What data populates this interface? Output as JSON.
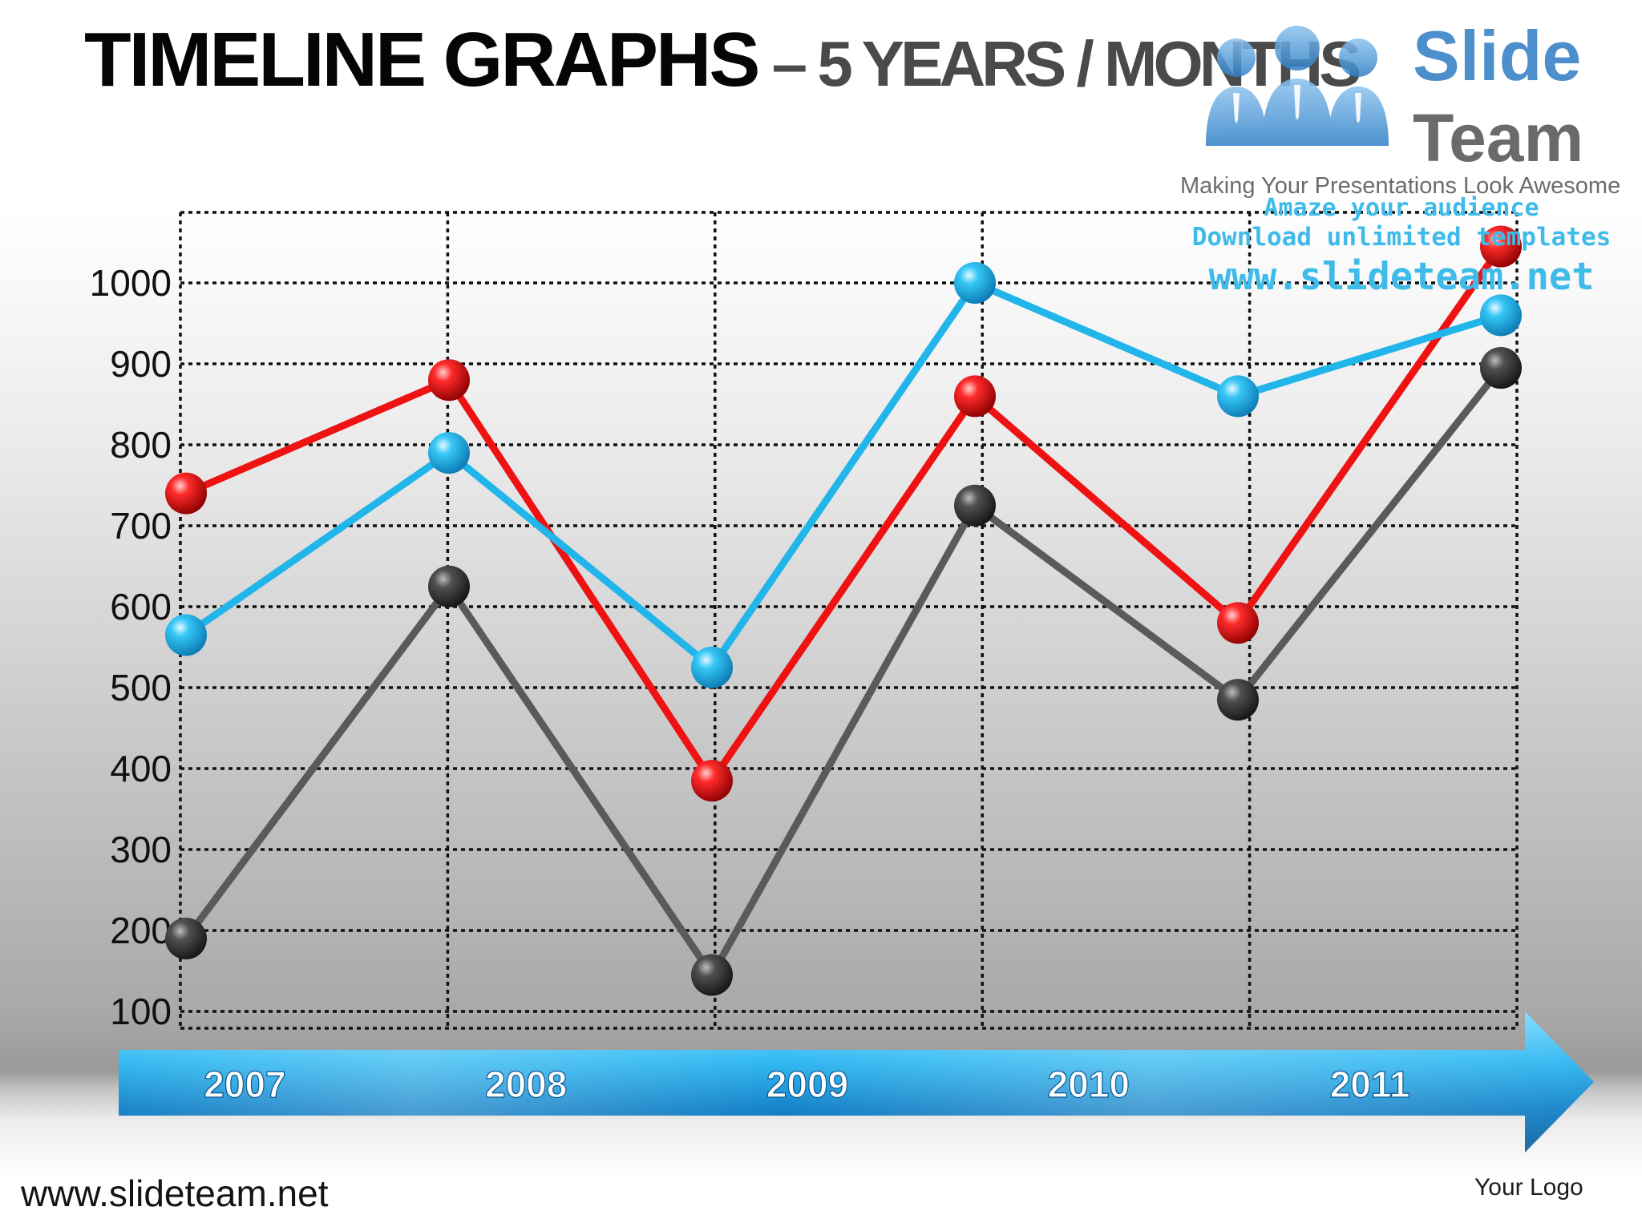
{
  "slide": {
    "title_main": "TIMELINE  GRAPHS",
    "title_sub": " – 5 YEARS / MONTHS",
    "footer_url": "www.slideteam.net",
    "footer_logo": "Your Logo"
  },
  "watermark": {
    "brand": "Slide",
    "team": "Team",
    "tagline": "Making Your Presentations Look Awesome",
    "promo_1": "Amaze your audience",
    "promo_2": "Download unlimited templates",
    "promo_3": "www.slideteam.net",
    "icon": "three-people-icon"
  },
  "colors": {
    "red_series": "#ee1212",
    "blue_series": "#21b5ea",
    "gray_series": "#5a5a5a",
    "arrow": "#1a9ae0"
  },
  "chart_data": {
    "type": "line",
    "x": [
      0,
      1,
      2,
      3,
      4,
      5
    ],
    "ylim": [
      100,
      1000
    ],
    "yticks": [
      100,
      200,
      300,
      400,
      500,
      600,
      700,
      800,
      900,
      1000
    ],
    "timeline_labels": [
      "2007",
      "2008",
      "2009",
      "2010",
      "2011"
    ],
    "grid": true,
    "series": [
      {
        "color": "#5a5a5a",
        "values": [
          190,
          625,
          145,
          725,
          485,
          895
        ]
      },
      {
        "color": "#ee1212",
        "values": [
          740,
          880,
          385,
          860,
          580,
          1045
        ]
      },
      {
        "color": "#21b5ea",
        "values": [
          565,
          790,
          525,
          1000,
          860,
          960
        ]
      }
    ]
  }
}
